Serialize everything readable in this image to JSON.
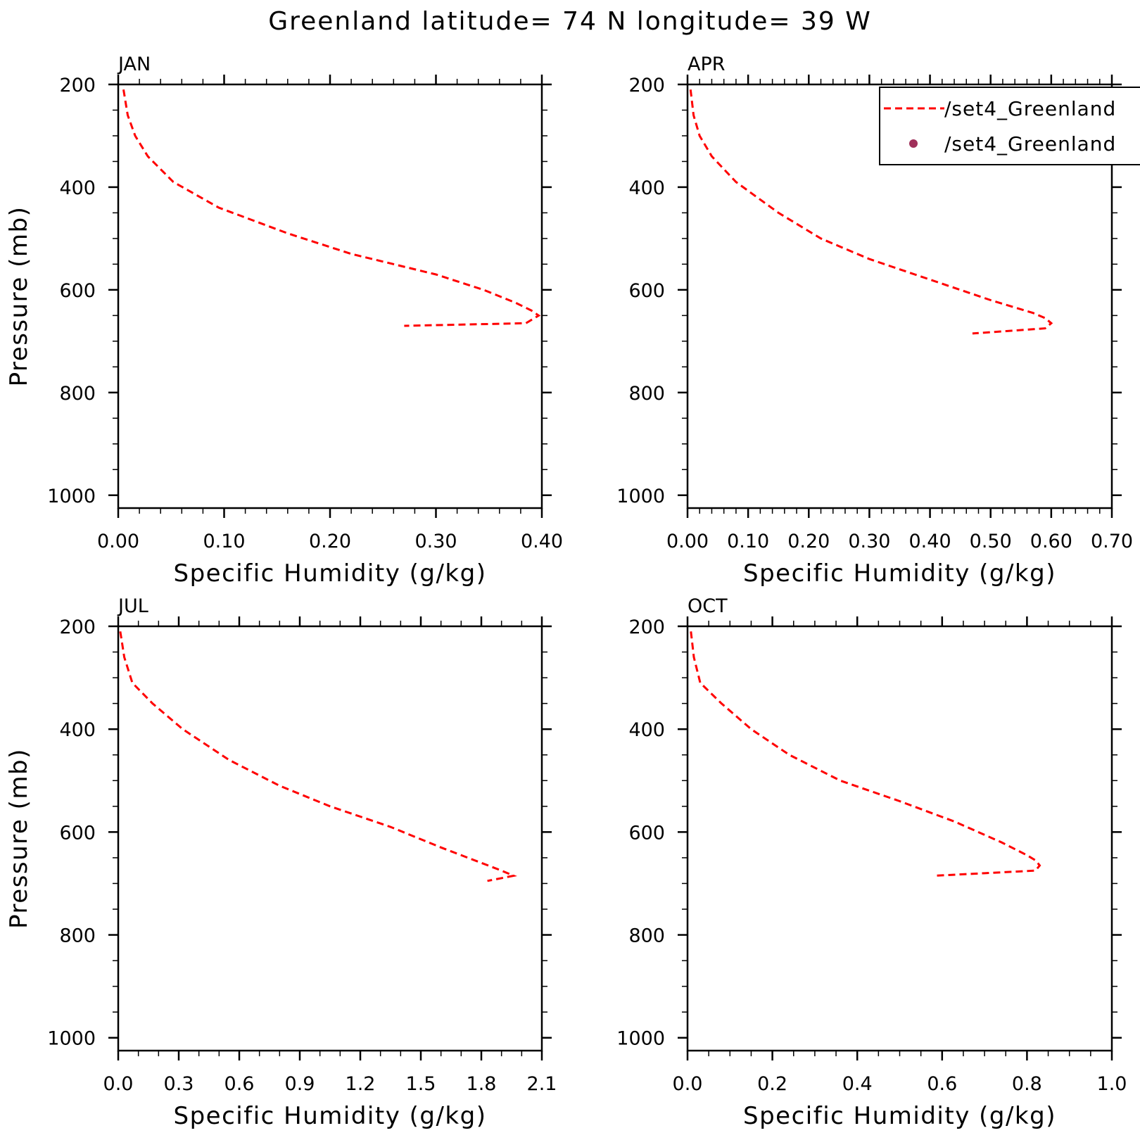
{
  "title": "Greenland  latitude= 74 N longitude= 39 W",
  "legend": {
    "entries": [
      {
        "label": "/set4_Greenland",
        "style": "dashed-line",
        "color": "#ff0000"
      },
      {
        "label": "/set4_Greenland",
        "style": "dot",
        "color": "#a0305a"
      }
    ]
  },
  "colors": {
    "line": "#ff0000",
    "axis": "#000000",
    "dot": "#a0305a"
  },
  "chart_data": [
    {
      "type": "line",
      "panel_label": "JAN",
      "xlabel": "Specific Humidity (g/kg)",
      "ylabel": "Pressure (mb)",
      "xlim": [
        0,
        0.4
      ],
      "ylim": [
        200,
        1025
      ],
      "y_inverted": true,
      "xticks": [
        "0.00",
        "0.10",
        "0.20",
        "0.30",
        "0.40"
      ],
      "xtick_values": [
        0,
        0.1,
        0.2,
        0.3,
        0.4
      ],
      "x_minor_step": 0.02,
      "yticks": [
        "200",
        "400",
        "600",
        "800",
        "1000"
      ],
      "ytick_values": [
        200,
        400,
        600,
        800,
        1000
      ],
      "y_minor_step": 50,
      "series": [
        {
          "name": "/set4_Greenland",
          "x": [
            0.005,
            0.009,
            0.016,
            0.028,
            0.052,
            0.095,
            0.16,
            0.22,
            0.3,
            0.345,
            0.375,
            0.39,
            0.397,
            0.385,
            0.27
          ],
          "y": [
            210,
            260,
            300,
            340,
            390,
            440,
            490,
            530,
            570,
            600,
            625,
            640,
            650,
            665,
            670
          ]
        }
      ]
    },
    {
      "type": "line",
      "panel_label": "APR",
      "xlabel": "Specific Humidity (g/kg)",
      "ylabel": "",
      "xlim": [
        0,
        0.7
      ],
      "ylim": [
        200,
        1025
      ],
      "y_inverted": true,
      "xticks": [
        "0.00",
        "0.10",
        "0.20",
        "0.30",
        "0.40",
        "0.50",
        "0.60",
        "0.70"
      ],
      "xtick_values": [
        0,
        0.1,
        0.2,
        0.3,
        0.4,
        0.5,
        0.6,
        0.7
      ],
      "x_minor_step": 0.02,
      "yticks": [
        "200",
        "400",
        "600",
        "800",
        "1000"
      ],
      "ytick_values": [
        200,
        400,
        600,
        800,
        1000
      ],
      "y_minor_step": 50,
      "series": [
        {
          "name": "/set4_Greenland",
          "x": [
            0.005,
            0.01,
            0.02,
            0.04,
            0.08,
            0.15,
            0.22,
            0.3,
            0.4,
            0.5,
            0.57,
            0.59,
            0.6,
            0.59,
            0.47
          ],
          "y": [
            210,
            260,
            300,
            340,
            390,
            450,
            500,
            540,
            580,
            620,
            645,
            655,
            665,
            675,
            685
          ]
        }
      ]
    },
    {
      "type": "line",
      "panel_label": "JUL",
      "xlabel": "Specific Humidity (g/kg)",
      "ylabel": "Pressure (mb)",
      "xlim": [
        0,
        2.1
      ],
      "ylim": [
        200,
        1025
      ],
      "y_inverted": true,
      "xticks": [
        "0.0",
        "0.3",
        "0.6",
        "0.9",
        "1.2",
        "1.5",
        "1.8",
        "2.1"
      ],
      "xtick_values": [
        0,
        0.3,
        0.6,
        0.9,
        1.2,
        1.5,
        1.8,
        2.1
      ],
      "x_minor_step": 0.1,
      "yticks": [
        "200",
        "400",
        "600",
        "800",
        "1000"
      ],
      "ytick_values": [
        200,
        400,
        600,
        800,
        1000
      ],
      "y_minor_step": 50,
      "series": [
        {
          "name": "/set4_Greenland",
          "x": [
            0.01,
            0.03,
            0.07,
            0.17,
            0.32,
            0.55,
            0.8,
            1.05,
            1.35,
            1.6,
            1.8,
            1.9,
            1.96,
            1.83
          ],
          "y": [
            210,
            260,
            310,
            350,
            400,
            460,
            510,
            550,
            590,
            630,
            660,
            675,
            685,
            695
          ]
        }
      ]
    },
    {
      "type": "line",
      "panel_label": "OCT",
      "xlabel": "Specific Humidity (g/kg)",
      "ylabel": "",
      "xlim": [
        0,
        1.0
      ],
      "ylim": [
        200,
        1025
      ],
      "y_inverted": true,
      "xticks": [
        "0.0",
        "0.2",
        "0.4",
        "0.6",
        "0.8",
        "1.0"
      ],
      "xtick_values": [
        0,
        0.2,
        0.4,
        0.6,
        0.8,
        1.0
      ],
      "x_minor_step": 0.05,
      "yticks": [
        "200",
        "400",
        "600",
        "800",
        "1000"
      ],
      "ytick_values": [
        200,
        400,
        600,
        800,
        1000
      ],
      "y_minor_step": 50,
      "series": [
        {
          "name": "/set4_Greenland",
          "x": [
            0.008,
            0.015,
            0.03,
            0.08,
            0.15,
            0.24,
            0.36,
            0.5,
            0.63,
            0.74,
            0.8,
            0.82,
            0.83,
            0.82,
            0.58
          ],
          "y": [
            210,
            260,
            310,
            350,
            400,
            450,
            500,
            540,
            580,
            620,
            645,
            655,
            665,
            675,
            685
          ]
        }
      ]
    }
  ]
}
